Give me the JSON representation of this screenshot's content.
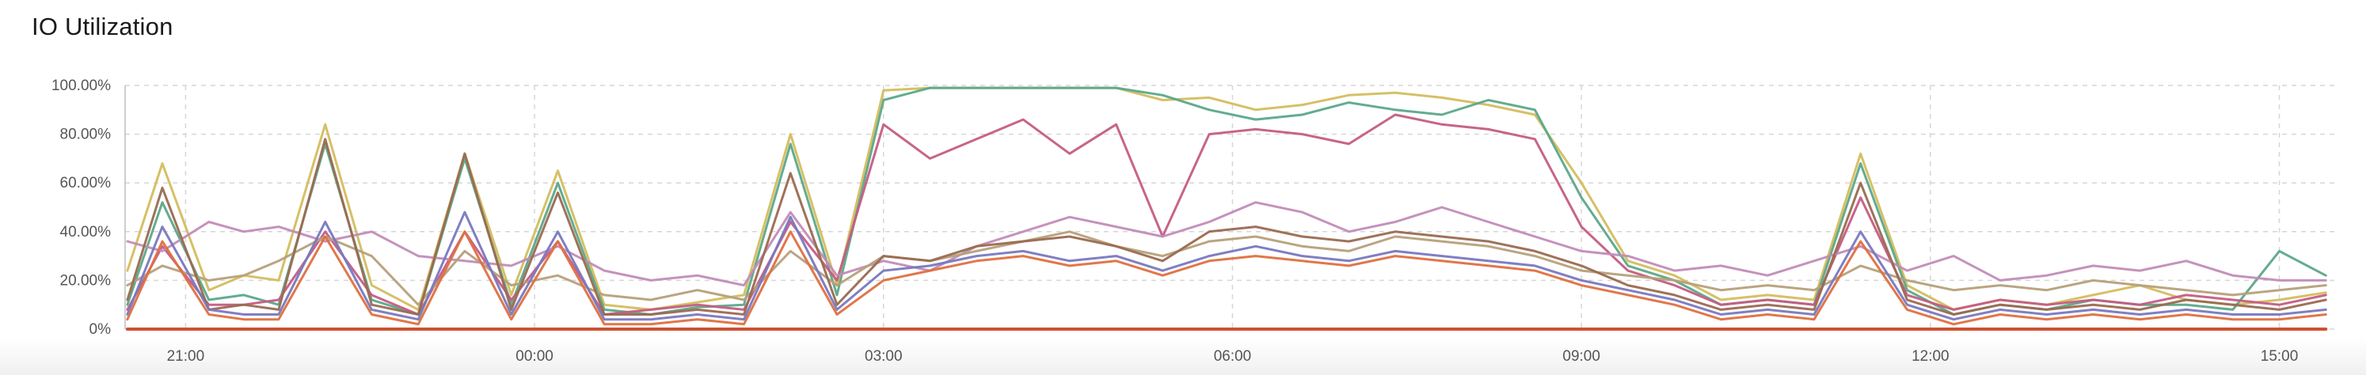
{
  "panel": {
    "title": "IO Utilization"
  },
  "chart_data": {
    "type": "line",
    "title": "IO Utilization",
    "xlabel": "",
    "ylabel": "",
    "x_unit": "hours since 20:00 (day 1)",
    "x_ticks": [
      {
        "label": "21:00",
        "value": 1
      },
      {
        "label": "00:00",
        "value": 4
      },
      {
        "label": "03:00",
        "value": 7
      },
      {
        "label": "06:00",
        "value": 10
      },
      {
        "label": "09:00",
        "value": 13
      },
      {
        "label": "12:00",
        "value": 16
      },
      {
        "label": "15:00",
        "value": 19
      }
    ],
    "y_ticks": [
      {
        "label": "0%",
        "value": 0
      },
      {
        "label": "20.00%",
        "value": 20
      },
      {
        "label": "40.00%",
        "value": 40
      },
      {
        "label": "60.00%",
        "value": 60
      },
      {
        "label": "80.00%",
        "value": 80
      },
      {
        "label": "100.00%",
        "value": 100
      }
    ],
    "xlim": [
      0.48,
      19.5
    ],
    "ylim": [
      0,
      100
    ],
    "grid": true,
    "legend": "none",
    "x": [
      0.5,
      0.8,
      1.2,
      1.5,
      1.8,
      2.2,
      2.6,
      3.0,
      3.4,
      3.8,
      4.2,
      4.6,
      5.0,
      5.4,
      5.8,
      6.2,
      6.6,
      7.0,
      7.4,
      7.8,
      8.2,
      8.6,
      9.0,
      9.4,
      9.8,
      10.2,
      10.6,
      11.0,
      11.4,
      11.8,
      12.2,
      12.6,
      13.0,
      13.4,
      13.8,
      14.2,
      14.6,
      15.0,
      15.4,
      15.8,
      16.2,
      16.6,
      17.0,
      17.4,
      17.8,
      18.2,
      18.6,
      19.0,
      19.4
    ],
    "series": [
      {
        "color": "#d4bd5e",
        "values": [
          24,
          68,
          16,
          22,
          20,
          84,
          18,
          8,
          72,
          14,
          65,
          10,
          8,
          11,
          14,
          80,
          18,
          98,
          99,
          99,
          99,
          99,
          99,
          94,
          95,
          90,
          92,
          96,
          97,
          95,
          92,
          88,
          60,
          28,
          22,
          12,
          14,
          12,
          72,
          18,
          8,
          12,
          10,
          14,
          18,
          12,
          10,
          12,
          15
        ]
      },
      {
        "color": "#5ba88a",
        "values": [
          10,
          52,
          12,
          14,
          10,
          76,
          12,
          6,
          70,
          10,
          60,
          8,
          6,
          9,
          10,
          76,
          14,
          94,
          99,
          99,
          99,
          99,
          99,
          96,
          90,
          86,
          88,
          93,
          90,
          88,
          94,
          90,
          54,
          26,
          20,
          10,
          12,
          10,
          68,
          16,
          6,
          10,
          8,
          12,
          10,
          10,
          8,
          32,
          22
        ]
      },
      {
        "color": "#c45c84",
        "values": [
          8,
          34,
          10,
          10,
          12,
          40,
          14,
          6,
          40,
          12,
          36,
          6,
          8,
          10,
          8,
          44,
          20,
          84,
          70,
          78,
          86,
          72,
          84,
          38,
          80,
          82,
          80,
          76,
          88,
          84,
          82,
          78,
          42,
          24,
          18,
          10,
          12,
          10,
          54,
          14,
          8,
          12,
          10,
          12,
          10,
          14,
          12,
          10,
          14
        ]
      },
      {
        "color": "#c28cb8",
        "values": [
          36,
          32,
          44,
          40,
          42,
          36,
          40,
          30,
          28,
          26,
          34,
          24,
          20,
          22,
          18,
          48,
          22,
          28,
          24,
          34,
          40,
          46,
          42,
          38,
          44,
          52,
          48,
          40,
          44,
          50,
          44,
          38,
          32,
          30,
          24,
          26,
          22,
          28,
          34,
          24,
          30,
          20,
          22,
          26,
          24,
          28,
          22,
          20,
          20
        ]
      },
      {
        "color": "#b6a07a",
        "values": [
          18,
          26,
          20,
          22,
          28,
          38,
          30,
          10,
          32,
          18,
          22,
          14,
          12,
          16,
          12,
          32,
          18,
          30,
          28,
          32,
          36,
          40,
          34,
          30,
          36,
          38,
          34,
          32,
          38,
          36,
          34,
          30,
          24,
          22,
          20,
          16,
          18,
          16,
          26,
          20,
          16,
          18,
          16,
          20,
          18,
          16,
          14,
          16,
          18
        ]
      },
      {
        "color": "#9a6a50",
        "values": [
          12,
          58,
          8,
          10,
          8,
          78,
          10,
          6,
          72,
          8,
          56,
          6,
          6,
          8,
          6,
          64,
          10,
          30,
          28,
          34,
          36,
          38,
          34,
          28,
          40,
          42,
          38,
          36,
          40,
          38,
          36,
          32,
          26,
          18,
          14,
          8,
          10,
          8,
          60,
          12,
          6,
          10,
          8,
          10,
          8,
          12,
          10,
          8,
          12
        ]
      },
      {
        "color": "#7878c0",
        "values": [
          6,
          42,
          8,
          6,
          6,
          44,
          8,
          4,
          48,
          6,
          40,
          4,
          4,
          6,
          4,
          46,
          8,
          24,
          26,
          30,
          32,
          28,
          30,
          24,
          30,
          34,
          30,
          28,
          32,
          30,
          28,
          26,
          20,
          16,
          12,
          6,
          8,
          6,
          40,
          10,
          4,
          8,
          6,
          8,
          6,
          8,
          6,
          6,
          8
        ]
      },
      {
        "color": "#de7040",
        "values": [
          4,
          36,
          6,
          4,
          4,
          38,
          6,
          2,
          40,
          4,
          36,
          2,
          2,
          4,
          2,
          40,
          6,
          20,
          24,
          28,
          30,
          26,
          28,
          22,
          28,
          30,
          28,
          26,
          30,
          28,
          26,
          24,
          18,
          14,
          10,
          4,
          6,
          4,
          36,
          8,
          2,
          6,
          4,
          6,
          4,
          6,
          4,
          4,
          6
        ]
      },
      {
        "color": "#c94a28",
        "values": [
          0,
          0,
          0,
          0,
          0,
          0,
          0,
          0,
          0,
          0,
          0,
          0,
          0,
          0,
          0,
          0,
          0,
          0,
          0,
          0,
          0,
          0,
          0,
          0,
          0,
          0,
          0,
          0,
          0,
          0,
          0,
          0,
          0,
          0,
          0,
          0,
          0,
          0,
          0,
          0,
          0,
          0,
          0,
          0,
          0,
          0,
          0,
          0,
          0
        ]
      }
    ]
  }
}
